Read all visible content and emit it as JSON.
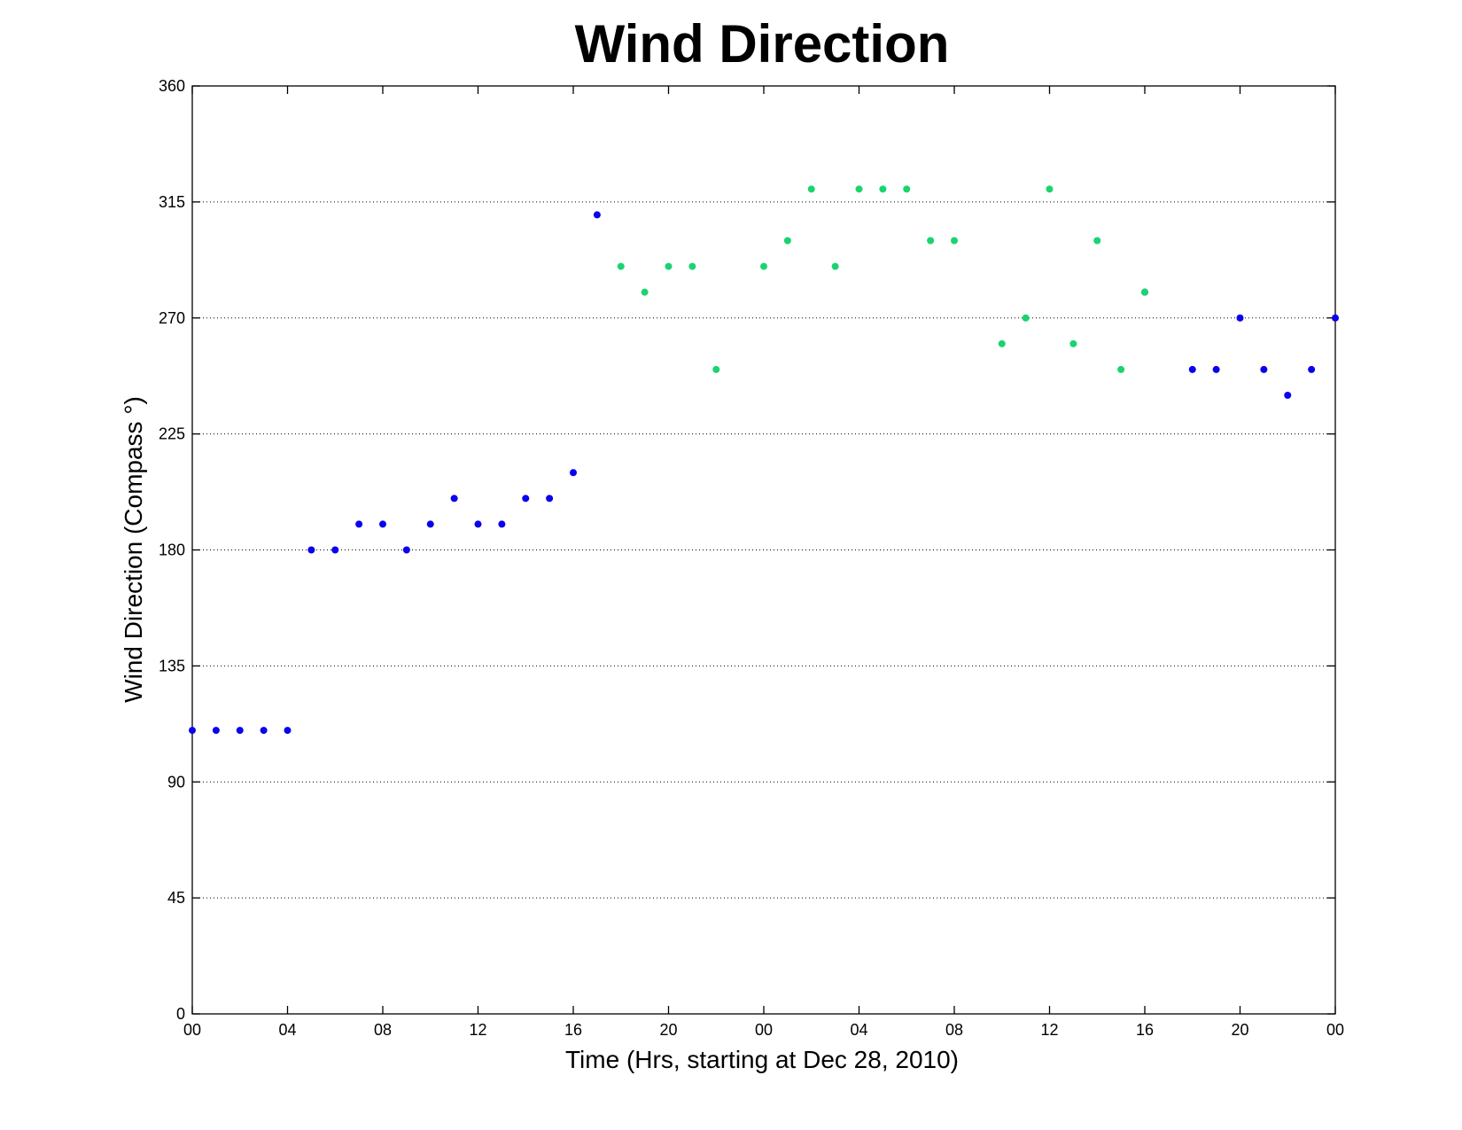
{
  "chart_data": {
    "type": "scatter",
    "title": "Wind Direction",
    "xlabel": "Time (Hrs, starting at Dec 28, 2010)",
    "ylabel": "Wind Direction (Compass  °)",
    "xlim": [
      0,
      48
    ],
    "ylim": [
      0,
      360
    ],
    "x_ticks": [
      0,
      4,
      8,
      12,
      16,
      20,
      24,
      28,
      32,
      36,
      40,
      44,
      48
    ],
    "x_tick_labels": [
      "00",
      "04",
      "08",
      "12",
      "16",
      "20",
      "00",
      "04",
      "08",
      "12",
      "16",
      "20",
      "00"
    ],
    "y_ticks": [
      0,
      45,
      90,
      135,
      180,
      225,
      270,
      315,
      360
    ],
    "y_tick_labels": [
      "0",
      "45",
      "90",
      "135",
      "180",
      "225",
      "270",
      "315",
      "360"
    ],
    "grid": "y-major-dotted",
    "colors": {
      "blue": "#0a00ee",
      "green": "#19d470"
    },
    "series": [
      {
        "color": "#0a00ee",
        "x": [
          0,
          1,
          2,
          3,
          4,
          5,
          6,
          7,
          8,
          9,
          10,
          11,
          12,
          13,
          14,
          15,
          16,
          17,
          40,
          42,
          43,
          44,
          45,
          46,
          47,
          48
        ],
        "y": [
          110,
          110,
          110,
          110,
          110,
          180,
          180,
          190,
          190,
          180,
          190,
          200,
          190,
          190,
          200,
          200,
          210,
          310,
          280,
          250,
          250,
          270,
          250,
          240,
          250,
          270
        ]
      },
      {
        "color": "#19d470",
        "x": [
          18,
          19,
          20,
          21,
          22,
          24,
          25,
          26,
          27,
          28,
          29,
          30,
          31,
          32,
          34,
          35,
          36,
          37,
          38,
          39,
          40
        ],
        "y": [
          290,
          280,
          290,
          290,
          250,
          290,
          300,
          320,
          290,
          320,
          320,
          320,
          300,
          300,
          260,
          270,
          320,
          260,
          300,
          250,
          280
        ]
      }
    ]
  }
}
